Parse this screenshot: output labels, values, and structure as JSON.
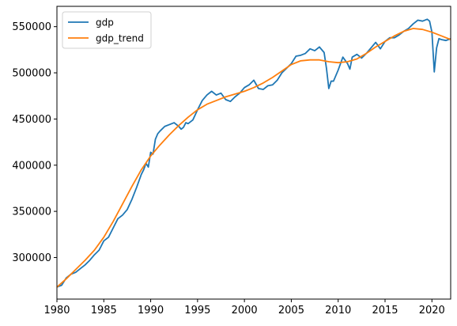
{
  "chart_data": {
    "type": "line",
    "title": "",
    "xlabel": "",
    "ylabel": "",
    "xlim": [
      1980,
      2022
    ],
    "ylim": [
      255000,
      572000
    ],
    "x_ticks": [
      1980,
      1985,
      1990,
      1995,
      2000,
      2005,
      2010,
      2015,
      2020
    ],
    "x_tick_labels": [
      "1980",
      "1985",
      "1990",
      "1995",
      "2000",
      "2005",
      "2010",
      "2015",
      "2020"
    ],
    "y_ticks": [
      300000,
      350000,
      400000,
      450000,
      500000,
      550000
    ],
    "y_tick_labels": [
      "300000",
      "350000",
      "400000",
      "450000",
      "500000",
      "550000"
    ],
    "grid": false,
    "legend_position": "top-left",
    "series": [
      {
        "name": "gdp",
        "color": "#1f77b4",
        "x": [
          1980.0,
          1980.5,
          1981.0,
          1981.5,
          1982.0,
          1982.5,
          1983.0,
          1983.5,
          1984.0,
          1984.5,
          1985.0,
          1985.5,
          1986.0,
          1986.5,
          1987.0,
          1987.5,
          1988.0,
          1988.5,
          1989.0,
          1989.25,
          1989.5,
          1989.75,
          1990.0,
          1990.25,
          1990.5,
          1990.75,
          1991.0,
          1991.5,
          1992.0,
          1992.5,
          1993.0,
          1993.25,
          1993.5,
          1993.75,
          1994.0,
          1994.5,
          1995.0,
          1995.5,
          1996.0,
          1996.5,
          1997.0,
          1997.5,
          1998.0,
          1998.5,
          1999.0,
          1999.5,
          2000.0,
          2000.5,
          2001.0,
          2001.5,
          2002.0,
          2002.5,
          2003.0,
          2003.5,
          2004.0,
          2004.5,
          2005.0,
          2005.5,
          2006.0,
          2006.5,
          2007.0,
          2007.5,
          2008.0,
          2008.5,
          2008.75,
          2009.0,
          2009.25,
          2009.5,
          2010.0,
          2010.5,
          2011.0,
          2011.25,
          2011.5,
          2012.0,
          2012.5,
          2013.0,
          2013.5,
          2014.0,
          2014.5,
          2015.0,
          2015.5,
          2016.0,
          2016.5,
          2017.0,
          2017.5,
          2018.0,
          2018.5,
          2019.0,
          2019.5,
          2019.75,
          2020.0,
          2020.25,
          2020.5,
          2020.75,
          2021.0,
          2021.5,
          2022.0
        ],
        "y": [
          268000,
          270000,
          278000,
          282000,
          284000,
          288000,
          292000,
          297000,
          303000,
          308000,
          318000,
          322000,
          332000,
          342000,
          346000,
          352000,
          363000,
          376000,
          390000,
          395000,
          402000,
          398000,
          414000,
          412000,
          428000,
          434000,
          437000,
          442000,
          444000,
          446000,
          442000,
          439000,
          441000,
          446000,
          445000,
          449000,
          460000,
          470000,
          476000,
          480000,
          476000,
          478000,
          471000,
          469000,
          474000,
          478000,
          484000,
          487000,
          492000,
          483000,
          482000,
          486000,
          487000,
          492000,
          500000,
          505000,
          510000,
          518000,
          519000,
          521000,
          526000,
          524000,
          528000,
          522000,
          505000,
          483000,
          491000,
          491000,
          503000,
          517000,
          510000,
          504000,
          517000,
          520000,
          516000,
          521000,
          527000,
          533000,
          526000,
          534000,
          538000,
          538000,
          541000,
          545000,
          548000,
          553000,
          557000,
          556000,
          558000,
          556000,
          544000,
          501000,
          527000,
          537000,
          536000,
          535000,
          537000
        ]
      },
      {
        "name": "gdp_trend",
        "color": "#ff7f0e",
        "x": [
          1980,
          1981,
          1982,
          1983,
          1984,
          1985,
          1986,
          1987,
          1988,
          1989,
          1990,
          1991,
          1992,
          1993,
          1994,
          1995,
          1996,
          1997,
          1998,
          1999,
          2000,
          2001,
          2002,
          2003,
          2004,
          2005,
          2006,
          2007,
          2008,
          2009,
          2010,
          2011,
          2012,
          2013,
          2014,
          2015,
          2016,
          2017,
          2018,
          2019,
          2020,
          2021,
          2022
        ],
        "y": [
          268000,
          277000,
          287000,
          297000,
          308000,
          322000,
          339000,
          358000,
          377000,
          395000,
          410000,
          422000,
          433000,
          443000,
          452000,
          460000,
          466000,
          470000,
          474000,
          477000,
          480000,
          484000,
          489000,
          495000,
          502000,
          509000,
          513000,
          514000,
          514000,
          512000,
          511000,
          512000,
          515000,
          521000,
          528000,
          534000,
          540000,
          545000,
          548000,
          547000,
          544000,
          540000,
          536000
        ]
      }
    ]
  }
}
